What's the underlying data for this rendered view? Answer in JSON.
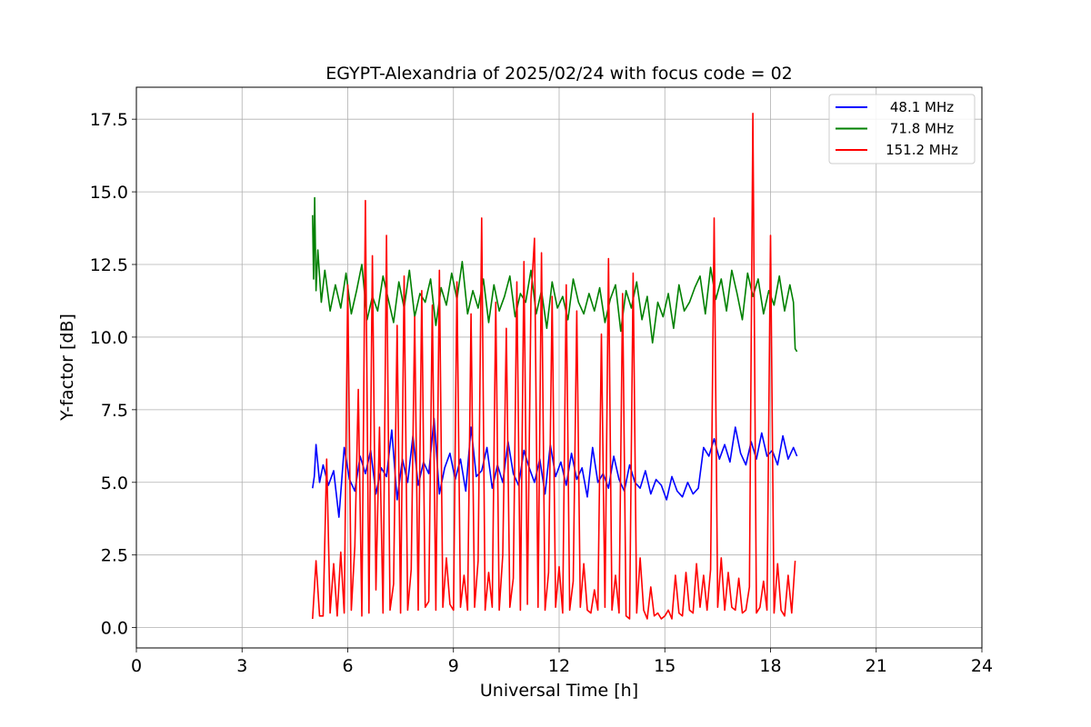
{
  "chart_data": {
    "type": "line",
    "title": "EGYPT-Alexandria of 2025/02/24 with focus code = 02",
    "xlabel": "Universal Time [h]",
    "ylabel": "Y-factor [dB]",
    "xlim": [
      0,
      24
    ],
    "ylim": [
      -0.7,
      18.6
    ],
    "xticks": [
      0,
      3,
      6,
      9,
      12,
      15,
      18,
      21,
      24
    ],
    "xtick_labels": [
      "0",
      "3",
      "6",
      "9",
      "12",
      "15",
      "18",
      "21",
      "24"
    ],
    "yticks": [
      0,
      2.5,
      5,
      7.5,
      10,
      12.5,
      15,
      17.5
    ],
    "ytick_labels": [
      "0.0",
      "2.5",
      "5.0",
      "7.5",
      "10.0",
      "12.5",
      "15.0",
      "17.5"
    ],
    "grid": true,
    "legend_position": "top-right",
    "series": [
      {
        "name": "48.1 MHz",
        "color": "#0000ff",
        "x": [
          5.0,
          5.05,
          5.1,
          5.2,
          5.3,
          5.45,
          5.6,
          5.75,
          5.9,
          6.05,
          6.2,
          6.35,
          6.5,
          6.65,
          6.8,
          6.95,
          7.1,
          7.25,
          7.4,
          7.55,
          7.7,
          7.85,
          8.0,
          8.15,
          8.3,
          8.45,
          8.6,
          8.75,
          8.9,
          9.05,
          9.2,
          9.35,
          9.5,
          9.65,
          9.8,
          9.95,
          10.1,
          10.25,
          10.4,
          10.55,
          10.7,
          10.85,
          11.0,
          11.15,
          11.3,
          11.45,
          11.6,
          11.75,
          11.9,
          12.05,
          12.2,
          12.35,
          12.5,
          12.65,
          12.8,
          12.95,
          13.1,
          13.25,
          13.4,
          13.55,
          13.7,
          13.85,
          14.0,
          14.15,
          14.3,
          14.45,
          14.6,
          14.75,
          14.9,
          15.05,
          15.2,
          15.35,
          15.5,
          15.65,
          15.8,
          15.95,
          16.1,
          16.25,
          16.4,
          16.55,
          16.7,
          16.85,
          17.0,
          17.15,
          17.3,
          17.45,
          17.6,
          17.75,
          17.9,
          18.05,
          18.2,
          18.35,
          18.5,
          18.65,
          18.75
        ],
        "y": [
          4.8,
          5.2,
          6.3,
          5.0,
          5.6,
          4.9,
          5.4,
          3.8,
          6.2,
          5.1,
          4.7,
          5.9,
          5.3,
          6.1,
          4.6,
          5.5,
          5.2,
          6.8,
          4.4,
          5.8,
          5.0,
          6.6,
          4.9,
          5.7,
          5.3,
          7.2,
          4.6,
          5.5,
          6.0,
          5.1,
          5.8,
          4.7,
          6.9,
          5.2,
          5.4,
          6.2,
          4.8,
          5.6,
          5.0,
          6.4,
          5.3,
          4.9,
          6.1,
          5.5,
          5.0,
          5.8,
          4.6,
          6.3,
          5.2,
          5.7,
          4.9,
          6.0,
          5.1,
          5.5,
          4.5,
          6.2,
          5.0,
          5.3,
          4.8,
          5.9,
          5.1,
          4.7,
          5.6,
          5.0,
          4.8,
          5.4,
          4.6,
          5.1,
          4.9,
          4.4,
          5.2,
          4.7,
          4.5,
          5.0,
          4.6,
          4.8,
          6.2,
          5.9,
          6.5,
          5.8,
          6.3,
          5.7,
          6.9,
          6.0,
          5.6,
          6.4,
          5.8,
          6.7,
          5.9,
          6.1,
          5.6,
          6.6,
          5.8,
          6.2,
          5.9
        ]
      },
      {
        "name": "71.8 MHz",
        "color": "#008000",
        "x": [
          5.0,
          5.03,
          5.06,
          5.1,
          5.15,
          5.25,
          5.35,
          5.5,
          5.65,
          5.8,
          5.95,
          6.1,
          6.25,
          6.4,
          6.55,
          6.7,
          6.85,
          7.0,
          7.15,
          7.3,
          7.45,
          7.6,
          7.75,
          7.9,
          8.05,
          8.2,
          8.35,
          8.5,
          8.65,
          8.8,
          8.95,
          9.1,
          9.25,
          9.4,
          9.55,
          9.7,
          9.85,
          10.0,
          10.15,
          10.3,
          10.45,
          10.6,
          10.75,
          10.9,
          11.05,
          11.2,
          11.35,
          11.5,
          11.65,
          11.8,
          11.95,
          12.1,
          12.25,
          12.4,
          12.55,
          12.7,
          12.85,
          13.0,
          13.15,
          13.3,
          13.45,
          13.6,
          13.75,
          13.9,
          14.05,
          14.2,
          14.35,
          14.5,
          14.65,
          14.8,
          14.95,
          15.1,
          15.25,
          15.4,
          15.55,
          15.7,
          15.85,
          16.0,
          16.15,
          16.3,
          16.45,
          16.6,
          16.75,
          16.9,
          17.05,
          17.2,
          17.35,
          17.5,
          17.65,
          17.8,
          17.95,
          18.1,
          18.25,
          18.4,
          18.55,
          18.65,
          18.7,
          18.75
        ],
        "y": [
          14.2,
          12.0,
          14.8,
          11.6,
          13.0,
          11.2,
          12.3,
          10.9,
          11.8,
          11.0,
          12.2,
          10.8,
          11.6,
          12.5,
          10.6,
          11.4,
          10.9,
          12.1,
          11.3,
          10.5,
          11.9,
          11.0,
          12.3,
          10.7,
          11.5,
          11.2,
          12.0,
          10.4,
          11.7,
          11.1,
          12.2,
          11.3,
          12.6,
          10.8,
          11.6,
          11.0,
          12.0,
          10.5,
          11.8,
          10.9,
          11.4,
          12.1,
          10.7,
          11.5,
          11.2,
          12.3,
          10.8,
          11.6,
          10.3,
          11.9,
          11.0,
          11.4,
          10.6,
          12.0,
          11.2,
          10.8,
          11.5,
          10.9,
          11.7,
          10.5,
          11.3,
          11.8,
          10.2,
          11.6,
          11.0,
          11.9,
          10.6,
          11.4,
          9.8,
          11.2,
          10.7,
          11.5,
          10.3,
          11.8,
          10.9,
          11.2,
          11.7,
          12.1,
          10.8,
          12.4,
          11.3,
          12.0,
          10.9,
          12.3,
          11.5,
          10.6,
          12.2,
          11.4,
          12.0,
          10.8,
          11.6,
          11.1,
          12.1,
          10.9,
          11.8,
          11.2,
          9.6,
          9.5
        ]
      },
      {
        "name": "151.2 MHz",
        "color": "#ff0000",
        "x": [
          5.0,
          5.1,
          5.2,
          5.3,
          5.4,
          5.5,
          5.6,
          5.7,
          5.8,
          5.9,
          6.0,
          6.1,
          6.2,
          6.3,
          6.4,
          6.5,
          6.6,
          6.7,
          6.8,
          6.9,
          7.0,
          7.1,
          7.2,
          7.3,
          7.4,
          7.5,
          7.6,
          7.7,
          7.8,
          7.9,
          8.0,
          8.1,
          8.2,
          8.3,
          8.4,
          8.5,
          8.6,
          8.7,
          8.8,
          8.9,
          9.0,
          9.1,
          9.2,
          9.3,
          9.4,
          9.5,
          9.6,
          9.7,
          9.8,
          9.9,
          10.0,
          10.1,
          10.2,
          10.3,
          10.4,
          10.5,
          10.6,
          10.7,
          10.8,
          10.9,
          11.0,
          11.1,
          11.2,
          11.3,
          11.4,
          11.5,
          11.6,
          11.7,
          11.8,
          11.9,
          12.0,
          12.1,
          12.2,
          12.3,
          12.4,
          12.5,
          12.6,
          12.7,
          12.8,
          12.9,
          13.0,
          13.1,
          13.2,
          13.3,
          13.4,
          13.5,
          13.6,
          13.7,
          13.8,
          13.9,
          14.0,
          14.1,
          14.2,
          14.3,
          14.4,
          14.5,
          14.6,
          14.7,
          14.8,
          14.9,
          15.0,
          15.1,
          15.2,
          15.3,
          15.4,
          15.5,
          15.6,
          15.7,
          15.8,
          15.9,
          16.0,
          16.1,
          16.2,
          16.3,
          16.4,
          16.5,
          16.6,
          16.7,
          16.8,
          16.9,
          17.0,
          17.1,
          17.2,
          17.3,
          17.4,
          17.5,
          17.6,
          17.7,
          17.8,
          17.9,
          18.0,
          18.1,
          18.2,
          18.3,
          18.4,
          18.5,
          18.6,
          18.7
        ],
        "y": [
          0.3,
          2.3,
          0.4,
          0.4,
          5.8,
          0.5,
          2.2,
          0.4,
          2.6,
          0.5,
          11.8,
          0.6,
          2.8,
          8.2,
          0.4,
          14.7,
          0.5,
          12.8,
          1.3,
          6.9,
          0.5,
          13.5,
          0.6,
          1.5,
          10.4,
          0.5,
          12.1,
          0.6,
          2.0,
          10.7,
          0.6,
          11.6,
          0.7,
          0.9,
          11.1,
          0.6,
          12.3,
          0.7,
          2.4,
          0.8,
          0.6,
          11.9,
          0.7,
          1.8,
          0.6,
          10.8,
          0.7,
          2.3,
          14.1,
          0.6,
          1.9,
          0.7,
          11.2,
          0.6,
          2.5,
          10.3,
          0.7,
          1.7,
          11.9,
          0.6,
          12.6,
          0.8,
          11.3,
          13.4,
          0.7,
          12.9,
          0.6,
          1.9,
          11.4,
          0.7,
          2.1,
          0.5,
          11.8,
          0.6,
          1.6,
          10.9,
          0.7,
          2.2,
          0.6,
          0.5,
          1.3,
          0.6,
          10.1,
          0.7,
          12.7,
          0.6,
          1.8,
          0.5,
          11.5,
          0.4,
          0.3,
          12.2,
          0.5,
          2.4,
          0.6,
          0.3,
          1.4,
          0.4,
          0.5,
          0.3,
          0.4,
          0.6,
          0.3,
          1.8,
          0.5,
          0.4,
          1.9,
          0.6,
          0.5,
          2.2,
          0.7,
          1.8,
          0.6,
          2.0,
          14.1,
          0.7,
          2.4,
          0.6,
          1.9,
          0.7,
          0.6,
          1.7,
          0.5,
          0.6,
          1.4,
          17.7,
          0.5,
          0.7,
          1.6,
          0.6,
          13.5,
          0.5,
          2.2,
          0.6,
          0.4,
          1.8,
          0.5,
          2.3
        ]
      }
    ]
  }
}
